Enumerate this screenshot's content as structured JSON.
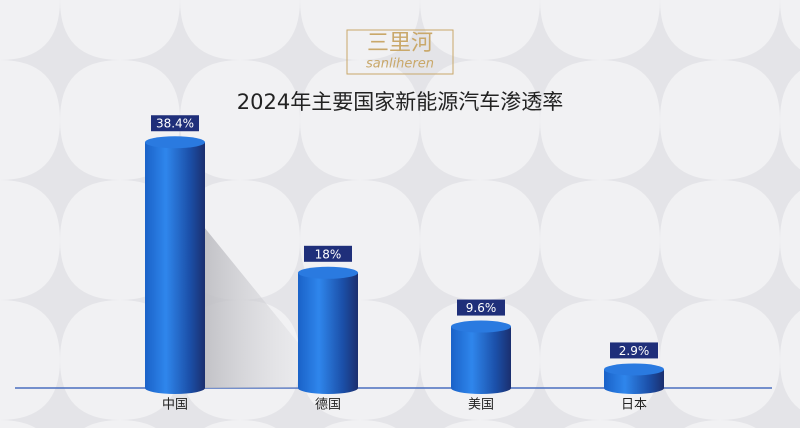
{
  "logo": {
    "name": "三里河",
    "subtitle": "sanliheren"
  },
  "chart_data": {
    "type": "bar",
    "title": "2024年主要国家新能源汽车渗透率",
    "categories": [
      "中国",
      "德国",
      "美国",
      "日本"
    ],
    "values": [
      38.4,
      18,
      9.6,
      2.9
    ],
    "value_labels": [
      "38.4%",
      "18%",
      "9.6%",
      "2.9%"
    ],
    "color": "#1f6fd6"
  }
}
